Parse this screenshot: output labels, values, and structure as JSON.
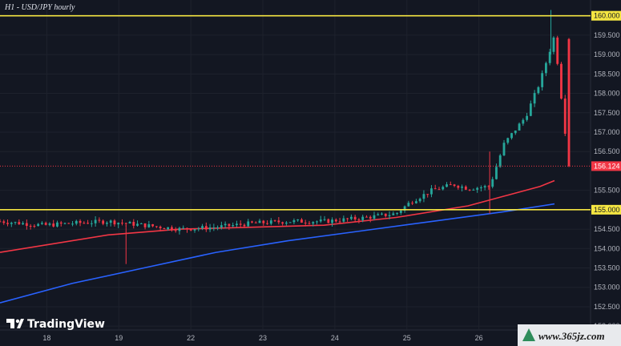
{
  "chart_data": {
    "type": "candlestick",
    "title": "H1 - USD/JPY hourly",
    "brand": "TradingView",
    "watermark": "www.365jz.com",
    "ylim": [
      151.9,
      160.2
    ],
    "y_ticks": [
      "160.000",
      "159.500",
      "159.000",
      "158.500",
      "158.000",
      "157.500",
      "157.000",
      "156.500",
      "156.124",
      "155.500",
      "155.000",
      "154.500",
      "154.000",
      "153.500",
      "153.000",
      "152.500",
      "152.000"
    ],
    "x_ticks": [
      {
        "label": "18",
        "x": 0
      },
      {
        "label": "19",
        "x": 1
      },
      {
        "label": "22",
        "x": 2
      },
      {
        "label": "23",
        "x": 3
      },
      {
        "label": "24",
        "x": 4
      },
      {
        "label": "25",
        "x": 5
      },
      {
        "label": "26",
        "x": 6
      }
    ],
    "grid": true,
    "horizontal_levels": [
      {
        "value": 160.0,
        "label": "160.000",
        "color": "#f5e642"
      },
      {
        "value": 155.0,
        "label": "155.000",
        "color": "#f5e642"
      }
    ],
    "last_price": {
      "value": 156.124,
      "label": "156.124",
      "color": "#f23645"
    },
    "series": [
      {
        "color": "#26a69a",
        "candle_points": [
          [
            -0.5,
            154.7
          ],
          [
            0.1,
            154.6
          ],
          [
            0.5,
            154.65
          ],
          [
            1.0,
            154.7
          ],
          [
            1.5,
            154.6
          ],
          [
            2.0,
            154.5
          ],
          [
            2.5,
            154.55
          ],
          [
            3.0,
            154.65
          ],
          [
            3.5,
            154.7
          ],
          [
            4.0,
            154.7
          ],
          [
            4.5,
            154.78
          ],
          [
            5.0,
            154.9
          ],
          [
            5.2,
            155.2
          ],
          [
            5.5,
            155.5
          ],
          [
            5.8,
            155.65
          ],
          [
            6.0,
            155.55
          ],
          [
            6.3,
            155.6
          ],
          [
            6.5,
            156.7
          ],
          [
            6.8,
            157.4
          ],
          [
            7.0,
            158.3
          ],
          [
            7.2,
            159.5
          ],
          [
            7.4,
            156.124
          ]
        ]
      }
    ],
    "overlays": [
      {
        "color": "#f23645",
        "points": [
          [
            -0.5,
            153.9
          ],
          [
            1.0,
            154.35
          ],
          [
            2.0,
            154.5
          ],
          [
            3.0,
            154.55
          ],
          [
            4.0,
            154.6
          ],
          [
            5.0,
            154.8
          ],
          [
            6.0,
            155.1
          ],
          [
            6.5,
            155.35
          ],
          [
            7.0,
            155.6
          ],
          [
            7.2,
            155.75
          ]
        ]
      },
      {
        "color": "#2962ff",
        "points": [
          [
            -0.5,
            152.6
          ],
          [
            0.5,
            153.1
          ],
          [
            1.5,
            153.5
          ],
          [
            2.5,
            153.9
          ],
          [
            3.5,
            154.2
          ],
          [
            4.5,
            154.45
          ],
          [
            5.5,
            154.7
          ],
          [
            6.5,
            154.95
          ],
          [
            7.2,
            155.15
          ]
        ]
      }
    ]
  }
}
